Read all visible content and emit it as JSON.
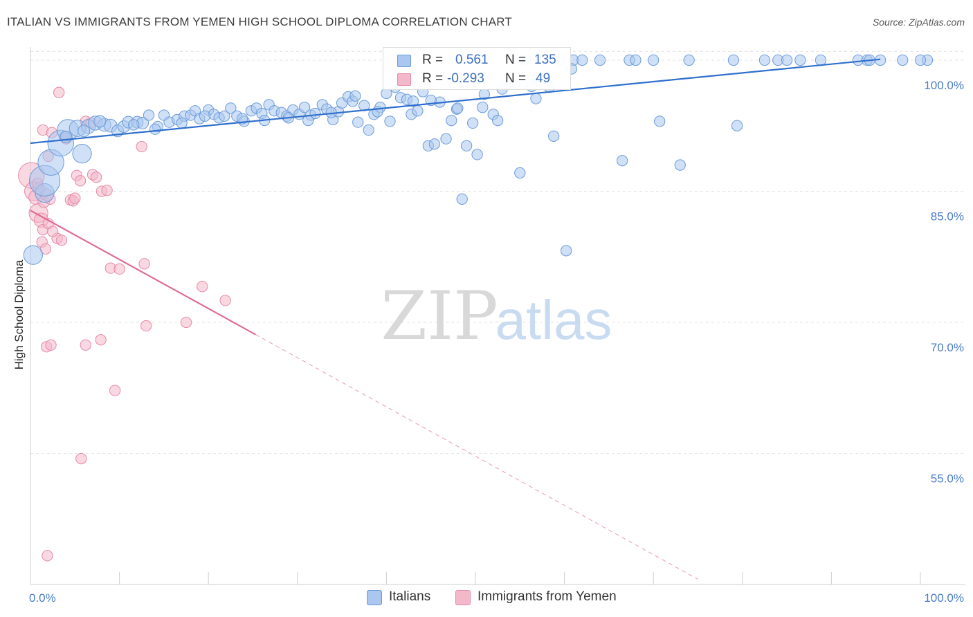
{
  "title": "ITALIAN VS IMMIGRANTS FROM YEMEN HIGH SCHOOL DIPLOMA CORRELATION CHART",
  "source": "Source: ZipAtlas.com",
  "watermark": {
    "zip": "ZIP",
    "atlas": "atlas"
  },
  "legend": {
    "rows": [
      {
        "r_label": "R =",
        "r_value": "0.561",
        "n_label": "N =",
        "n_value": "135"
      },
      {
        "r_label": "R =",
        "r_value": "-0.293",
        "n_label": "N =",
        "n_value": "49"
      }
    ]
  },
  "bottom_legend": {
    "items": [
      {
        "label": "Italians"
      },
      {
        "label": "Immigrants from Yemen"
      }
    ]
  },
  "colors": {
    "blue_fill": "#a9c7ef",
    "blue_stroke": "#6b9bd8",
    "blue_line": "#2f6fcd",
    "pink_fill": "#f4b8cb",
    "pink_stroke": "#e58aa8",
    "pink_line": "#e06b96",
    "tick_text": "#4a7cc8",
    "grid": "#e3e3e3"
  },
  "chart_data": {
    "type": "scatter",
    "title": "ITALIAN VS IMMIGRANTS FROM YEMEN HIGH SCHOOL DIPLOMA CORRELATION CHART",
    "xlabel": "",
    "ylabel": "High School Diploma",
    "xlim": [
      0,
      100
    ],
    "ylim": [
      40,
      101.5
    ],
    "x_tick_labels": [
      "0.0%",
      "100.0%"
    ],
    "y_ticks": [
      55,
      70,
      85,
      100
    ],
    "y_tick_labels": [
      "55.0%",
      "70.0%",
      "85.0%",
      "100.0%"
    ],
    "grid": true,
    "legend_position": "top-center",
    "series": [
      {
        "name": "Italians",
        "color": "#a9c7ef",
        "trend": {
          "x": [
            0,
            95.5
          ],
          "y": [
            90.5,
            100.1
          ]
        },
        "points": [
          [
            0.3,
            77.7,
            1.6
          ],
          [
            1.6,
            84.8,
            1.6
          ],
          [
            1.6,
            86.2,
            2.6
          ],
          [
            2.3,
            88.3,
            2.2
          ],
          [
            3.4,
            90.5,
            2.2
          ],
          [
            4.2,
            92.0,
            1.8
          ],
          [
            5.8,
            89.3,
            1.6
          ],
          [
            5.3,
            92.2,
            1.4
          ],
          [
            6.5,
            92.4,
            1.2
          ],
          [
            7.3,
            92.8,
            1.2
          ],
          [
            8.3,
            92.6,
            1.1
          ],
          [
            9.0,
            92.5,
            1.1
          ],
          [
            9.8,
            91.9,
            1.0
          ],
          [
            10.5,
            92.4,
            1.0
          ],
          [
            11.0,
            92.9,
            1.0
          ],
          [
            12.0,
            92.9,
            1.0
          ],
          [
            12.6,
            92.8,
            1.0
          ],
          [
            13.3,
            93.7,
            0.9
          ],
          [
            14.3,
            92.4,
            0.9
          ],
          [
            15.0,
            93.7,
            0.9
          ],
          [
            15.6,
            92.9,
            0.9
          ],
          [
            16.5,
            93.2,
            0.9
          ],
          [
            17.3,
            93.6,
            0.9
          ],
          [
            18.0,
            93.7,
            0.9
          ],
          [
            18.5,
            94.2,
            0.9
          ],
          [
            19.0,
            93.3,
            0.9
          ],
          [
            20.0,
            94.3,
            0.9
          ],
          [
            20.6,
            93.8,
            0.9
          ],
          [
            21.2,
            93.4,
            0.9
          ],
          [
            21.8,
            93.6,
            0.9
          ],
          [
            22.5,
            94.5,
            0.9
          ],
          [
            23.2,
            93.6,
            0.9
          ],
          [
            24.0,
            93.0,
            0.9
          ],
          [
            24.8,
            94.2,
            0.9
          ],
          [
            25.4,
            94.5,
            0.9
          ],
          [
            26.0,
            93.9,
            0.9
          ],
          [
            26.8,
            94.9,
            0.9
          ],
          [
            27.4,
            94.2,
            0.9
          ],
          [
            28.2,
            94.0,
            0.9
          ],
          [
            28.8,
            93.6,
            0.9
          ],
          [
            29.5,
            94.3,
            0.9
          ],
          [
            30.2,
            93.8,
            0.9
          ],
          [
            30.8,
            94.6,
            0.9
          ],
          [
            31.5,
            93.7,
            0.9
          ],
          [
            32.0,
            93.9,
            0.9
          ],
          [
            32.8,
            94.9,
            0.9
          ],
          [
            33.3,
            94.4,
            0.9
          ],
          [
            34.0,
            93.2,
            0.9
          ],
          [
            34.6,
            94.1,
            0.9
          ],
          [
            35.0,
            95.1,
            0.9
          ],
          [
            35.7,
            95.8,
            0.9
          ],
          [
            36.2,
            95.3,
            0.9
          ],
          [
            36.8,
            92.9,
            0.9
          ],
          [
            37.5,
            94.8,
            0.9
          ],
          [
            38.0,
            92.0,
            0.9
          ],
          [
            38.6,
            93.8,
            0.9
          ],
          [
            39.3,
            94.6,
            0.9
          ],
          [
            40.0,
            96.2,
            0.9
          ],
          [
            40.4,
            93.0,
            0.9
          ],
          [
            41.0,
            96.9,
            0.9
          ],
          [
            41.6,
            95.7,
            0.9
          ],
          [
            42.3,
            95.5,
            0.9
          ],
          [
            42.8,
            93.8,
            0.9
          ],
          [
            43.5,
            94.2,
            0.9
          ],
          [
            44.1,
            96.4,
            0.9
          ],
          [
            44.7,
            90.2,
            0.9
          ],
          [
            45.4,
            90.4,
            0.9
          ],
          [
            46.0,
            95.2,
            0.9
          ],
          [
            46.7,
            91.0,
            0.9
          ],
          [
            47.3,
            93.1,
            0.9
          ],
          [
            47.9,
            94.4,
            0.9
          ],
          [
            48.5,
            84.1,
            0.9
          ],
          [
            49.0,
            90.2,
            0.9
          ],
          [
            49.7,
            92.8,
            0.9
          ],
          [
            50.2,
            89.2,
            0.9
          ],
          [
            50.8,
            94.6,
            0.9
          ],
          [
            52.0,
            93.8,
            0.9
          ],
          [
            52.5,
            93.1,
            0.9
          ],
          [
            53.5,
            97.3,
            0.9
          ],
          [
            55.0,
            87.1,
            0.9
          ],
          [
            55.6,
            100.0,
            0.9
          ],
          [
            56.3,
            97.0,
            0.9
          ],
          [
            56.8,
            95.6,
            0.9
          ],
          [
            57.4,
            100.0,
            0.9
          ],
          [
            58.0,
            98.2,
            0.9
          ],
          [
            58.8,
            91.3,
            0.9
          ],
          [
            59.5,
            100.0,
            0.9
          ],
          [
            60.2,
            78.2,
            0.9
          ],
          [
            61.0,
            100.0,
            0.9
          ],
          [
            62.0,
            100.0,
            0.9
          ],
          [
            64.0,
            100.0,
            0.9
          ],
          [
            66.5,
            88.5,
            0.9
          ],
          [
            67.3,
            100.0,
            0.9
          ],
          [
            68.0,
            100.0,
            0.9
          ],
          [
            70.0,
            100.0,
            0.9
          ],
          [
            70.7,
            93.0,
            0.9
          ],
          [
            73.0,
            88.0,
            0.9
          ],
          [
            74.0,
            100.0,
            0.9
          ],
          [
            79.0,
            100.0,
            0.9
          ],
          [
            79.4,
            92.5,
            0.9
          ],
          [
            82.5,
            100.0,
            0.9
          ],
          [
            84.0,
            100.0,
            0.9
          ],
          [
            85.0,
            100.0,
            0.9
          ],
          [
            86.5,
            100.0,
            0.9
          ],
          [
            88.8,
            100.0,
            0.9
          ],
          [
            93.0,
            100.0,
            0.9
          ],
          [
            94.0,
            100.0,
            0.9
          ],
          [
            94.3,
            100.0,
            0.9
          ],
          [
            95.5,
            100.0,
            0.9
          ],
          [
            98.0,
            100.0,
            0.9
          ],
          [
            103.5,
            100.0,
            0.9
          ],
          [
            100.0,
            100.0,
            0.9
          ],
          [
            4.0,
            91.2,
            1.0
          ],
          [
            6.0,
            91.9,
            1.0
          ],
          [
            7.8,
            93.0,
            1.0
          ],
          [
            11.6,
            92.6,
            0.9
          ],
          [
            14.0,
            92.1,
            0.9
          ],
          [
            17.0,
            92.8,
            0.9
          ],
          [
            19.6,
            93.6,
            0.9
          ],
          [
            23.8,
            93.3,
            0.9
          ],
          [
            26.3,
            93.1,
            0.9
          ],
          [
            29.0,
            93.4,
            0.9
          ],
          [
            31.2,
            93.1,
            0.9
          ],
          [
            33.8,
            94.0,
            0.9
          ],
          [
            36.5,
            95.9,
            0.9
          ],
          [
            39.0,
            94.1,
            0.9
          ],
          [
            43.0,
            95.3,
            0.9
          ],
          [
            45.0,
            95.4,
            0.9
          ],
          [
            48.0,
            94.5,
            0.9
          ],
          [
            51.0,
            96.1,
            0.9
          ],
          [
            53.0,
            96.7,
            0.9
          ],
          [
            54.4,
            97.3,
            0.9
          ],
          [
            57.0,
            98.0,
            0.9
          ],
          [
            58.3,
            96.9,
            0.9
          ],
          [
            60.8,
            99.0,
            0.9
          ]
        ]
      },
      {
        "name": "Immigrants from Yemen",
        "color": "#f4b8cb",
        "trend": {
          "x": [
            0,
            25.3
          ],
          "y": [
            82.8,
            68.6
          ]
        },
        "trend_extension": {
          "x": [
            25.3,
            75.0
          ],
          "y": [
            68.6,
            40.6
          ]
        },
        "points": [
          [
            0.1,
            86.8,
            2.2
          ],
          [
            0.4,
            85.0,
            1.6
          ],
          [
            0.6,
            84.3,
            1.2
          ],
          [
            0.9,
            82.5,
            1.6
          ],
          [
            1.2,
            81.7,
            1.2
          ],
          [
            1.0,
            85.3,
            1.0
          ],
          [
            1.5,
            83.8,
            1.0
          ],
          [
            1.8,
            84.6,
            1.0
          ],
          [
            1.3,
            79.2,
            0.9
          ],
          [
            1.7,
            78.4,
            0.9
          ],
          [
            1.4,
            80.6,
            0.9
          ],
          [
            2.0,
            81.3,
            0.9
          ],
          [
            2.2,
            84.1,
            0.9
          ],
          [
            1.4,
            92.0,
            0.9
          ],
          [
            2.4,
            91.7,
            0.9
          ],
          [
            2.0,
            89.0,
            0.9
          ],
          [
            3.2,
            96.3,
            0.9
          ],
          [
            3.8,
            91.2,
            0.9
          ],
          [
            4.0,
            91.0,
            0.9
          ],
          [
            3.0,
            79.6,
            0.9
          ],
          [
            3.5,
            79.4,
            0.9
          ],
          [
            4.5,
            84.0,
            0.9
          ],
          [
            4.8,
            83.9,
            0.9
          ],
          [
            5.0,
            84.2,
            0.9
          ],
          [
            5.2,
            86.8,
            0.9
          ],
          [
            5.6,
            86.2,
            0.9
          ],
          [
            6.2,
            93.0,
            0.9
          ],
          [
            6.8,
            92.8,
            0.9
          ],
          [
            7.0,
            86.9,
            0.9
          ],
          [
            7.4,
            86.6,
            0.9
          ],
          [
            8.0,
            85.0,
            0.9
          ],
          [
            8.6,
            85.1,
            0.9
          ],
          [
            9.0,
            76.2,
            0.9
          ],
          [
            10.0,
            76.1,
            0.9
          ],
          [
            12.5,
            90.1,
            0.9
          ],
          [
            12.8,
            76.7,
            0.9
          ],
          [
            13.0,
            69.6,
            0.9
          ],
          [
            17.5,
            70.0,
            0.9
          ],
          [
            19.3,
            74.1,
            0.9
          ],
          [
            21.9,
            72.5,
            0.9
          ],
          [
            1.8,
            67.2,
            0.9
          ],
          [
            2.3,
            67.4,
            0.9
          ],
          [
            6.2,
            67.4,
            0.9
          ],
          [
            7.9,
            68.0,
            0.9
          ],
          [
            9.5,
            62.2,
            0.9
          ],
          [
            5.7,
            54.4,
            0.9
          ],
          [
            1.9,
            43.3,
            0.9
          ],
          [
            2.5,
            80.4,
            0.9
          ],
          [
            0.8,
            85.9,
            0.9
          ]
        ]
      }
    ]
  }
}
